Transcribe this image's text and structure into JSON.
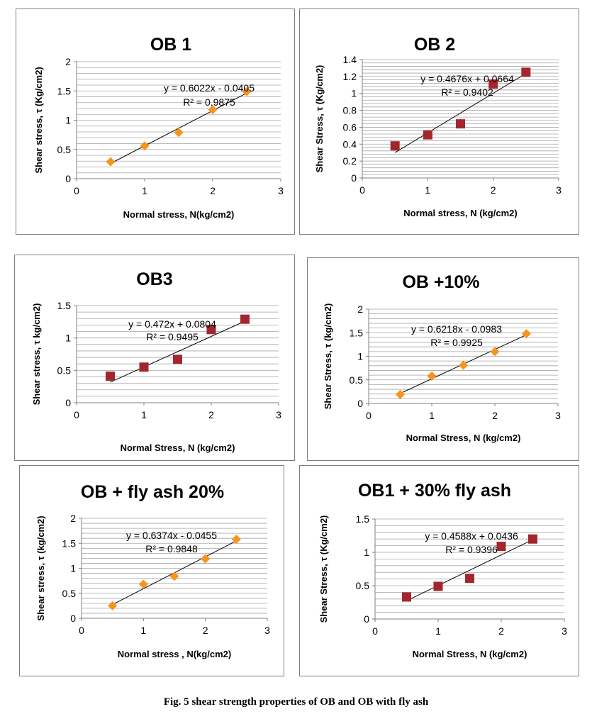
{
  "figure_caption": "Fig. 5  shear strength properties of OB and OB with fly ash",
  "colors": {
    "orange_marker": "#F7941D",
    "red_marker": "#A3262F",
    "grid": "#A6A6A6",
    "axis": "#808080",
    "frame": "#7F7F7F"
  },
  "chart_data": [
    {
      "type": "scatter",
      "title": "OB 1",
      "xlabel": "Normal stress, N(kg/cm2)",
      "ylabel": "Shear stress, τ (Kg/cm2)",
      "xlim": [
        0,
        3
      ],
      "ylim": [
        0,
        2
      ],
      "xticks": [
        "0",
        "1",
        "2",
        "3"
      ],
      "yticks": [
        "0",
        "0.5",
        "1",
        "1.5",
        "2"
      ],
      "marker": "diamond",
      "marker_color": "#F7941D",
      "x": [
        0.5,
        1.0,
        1.5,
        2.0,
        2.5
      ],
      "y": [
        0.29,
        0.56,
        0.79,
        1.18,
        1.49
      ],
      "trendline": {
        "slope": 0.6022,
        "intercept": -0.0405
      },
      "equation": "y = 0.6022x - 0.0405",
      "r2": "R² = 0.9875"
    },
    {
      "type": "scatter",
      "title": "OB  2",
      "xlabel": "Normal  stress, N (kg/cm2)",
      "ylabel": "Shear Stress, τ (Kg/cm2)",
      "xlim": [
        0,
        3
      ],
      "ylim": [
        0,
        1.4
      ],
      "xticks": [
        "0",
        "1",
        "2",
        "3"
      ],
      "yticks": [
        "0",
        "0.2",
        "0.4",
        "0.6",
        "0.8",
        "1",
        "1.2",
        "1.4"
      ],
      "marker": "square",
      "marker_color": "#A3262F",
      "x": [
        0.5,
        1.0,
        1.5,
        2.0,
        2.5
      ],
      "y": [
        0.38,
        0.51,
        0.64,
        1.11,
        1.25
      ],
      "trendline": {
        "slope": 0.4676,
        "intercept": 0.0664
      },
      "equation": "y = 0.4676x + 0.0664",
      "r2": "R² = 0.9402"
    },
    {
      "type": "scatter",
      "title": "OB3",
      "xlabel": "Normal Stress, N (kg/cm2)",
      "ylabel": "Shear stress,  τ kg/cm2)",
      "xlim": [
        0,
        3
      ],
      "ylim": [
        0,
        1.5
      ],
      "xticks": [
        "0",
        "1",
        "2",
        "3"
      ],
      "yticks": [
        "0",
        "0.5",
        "1",
        "1.5"
      ],
      "marker": "square",
      "marker_color": "#A3262F",
      "x": [
        0.5,
        1.0,
        1.5,
        2.0,
        2.5
      ],
      "y": [
        0.41,
        0.55,
        0.67,
        1.13,
        1.29
      ],
      "trendline": {
        "slope": 0.472,
        "intercept": 0.0804
      },
      "equation": "y = 0.472x + 0.0804",
      "r2": "R² = 0.9495"
    },
    {
      "type": "scatter",
      "title": "OB  +10%",
      "xlabel": "Normal Stress, N (kg/cm2)",
      "ylabel": "Shear  Stress, τ (kg/cm2)",
      "xlim": [
        0,
        3
      ],
      "ylim": [
        0,
        2
      ],
      "xticks": [
        "0",
        "1",
        "2",
        "3"
      ],
      "yticks": [
        "0",
        "0.5",
        "1",
        "1.5",
        "2"
      ],
      "marker": "diamond",
      "marker_color": "#F7941D",
      "x": [
        0.5,
        1.0,
        1.5,
        2.0,
        2.5
      ],
      "y": [
        0.19,
        0.58,
        0.81,
        1.1,
        1.48
      ],
      "trendline": {
        "slope": 0.6218,
        "intercept": -0.0983
      },
      "equation": "y = 0.6218x - 0.0983",
      "r2": "R² = 0.9925"
    },
    {
      "type": "scatter",
      "title": "OB + fly ash 20%",
      "xlabel": "Normal stress , N(kg/cm2)",
      "ylabel": "Shear stress, τ (kg/cm2)",
      "xlim": [
        0,
        3
      ],
      "ylim": [
        0,
        2
      ],
      "xticks": [
        "0",
        "1",
        "2",
        "3"
      ],
      "yticks": [
        "0",
        "0.5",
        "1",
        "1.5",
        "2"
      ],
      "marker": "diamond",
      "marker_color": "#F7941D",
      "x": [
        0.5,
        1.0,
        1.5,
        2.0,
        2.5
      ],
      "y": [
        0.25,
        0.68,
        0.84,
        1.19,
        1.58
      ],
      "trendline": {
        "slope": 0.6374,
        "intercept": -0.0455
      },
      "equation": "y = 0.6374x - 0.0455",
      "r2": "R² = 0.9848"
    },
    {
      "type": "scatter",
      "title": "OB1 + 30% fly ash",
      "xlabel": "Normal Stress, N (kg/cm2)",
      "ylabel": "Shear Stress, τ (Kg/cm2)",
      "xlim": [
        0,
        3
      ],
      "ylim": [
        0,
        1.5
      ],
      "xticks": [
        "0",
        "1",
        "2",
        "3"
      ],
      "yticks": [
        "0",
        "0.5",
        "1",
        "1.5"
      ],
      "marker": "square",
      "marker_color": "#A3262F",
      "x": [
        0.5,
        1.0,
        1.5,
        2.0,
        2.5
      ],
      "y": [
        0.33,
        0.49,
        0.61,
        1.09,
        1.2
      ],
      "trendline": {
        "slope": 0.4588,
        "intercept": 0.0436
      },
      "equation": "y = 0.4588x + 0.0436",
      "r2": "R² = 0.9396"
    }
  ]
}
